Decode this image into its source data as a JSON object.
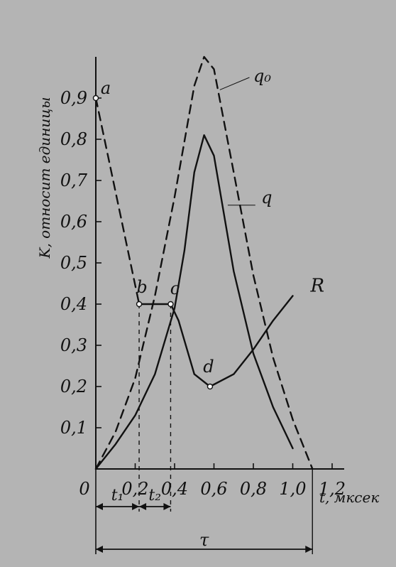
{
  "chart_data": {
    "type": "line",
    "ylabel": "K, относит единицы",
    "xlabel": "t, мксек",
    "xlim": [
      0,
      1.2
    ],
    "ylim": [
      0,
      1.0
    ],
    "x_ticks": [
      "0",
      "0,2",
      "0,4",
      "0,6",
      "0,8",
      "1,0",
      "1,2"
    ],
    "y_ticks": [
      "0,1",
      "0,2",
      "0,3",
      "0,4",
      "0,5",
      "0,6",
      "0,7",
      "0,8",
      "0,9"
    ],
    "series": [
      {
        "name": "q₀",
        "style": "dashed",
        "x": [
          0,
          0.1,
          0.2,
          0.3,
          0.4,
          0.5,
          0.55,
          0.6,
          0.7,
          0.8,
          0.9,
          1.0,
          1.1
        ],
        "y": [
          0,
          0.09,
          0.22,
          0.42,
          0.66,
          0.93,
          1.0,
          0.97,
          0.72,
          0.47,
          0.27,
          0.12,
          0.0
        ]
      },
      {
        "name": "q",
        "style": "solid",
        "x": [
          0,
          0.1,
          0.2,
          0.3,
          0.4,
          0.45,
          0.5,
          0.55,
          0.6,
          0.7,
          0.8,
          0.9,
          1.0
        ],
        "y": [
          0,
          0.06,
          0.13,
          0.23,
          0.39,
          0.53,
          0.72,
          0.81,
          0.76,
          0.48,
          0.28,
          0.15,
          0.05
        ]
      },
      {
        "name": "R",
        "segments": [
          {
            "style": "dashed",
            "x": [
              0,
              0.22
            ],
            "y": [
              0.9,
              0.4
            ]
          },
          {
            "style": "solid",
            "x": [
              0.22,
              0.38,
              0.42,
              0.5,
              0.58,
              0.7,
              0.8,
              0.9,
              1.0
            ],
            "y": [
              0.4,
              0.4,
              0.36,
              0.23,
              0.2,
              0.23,
              0.29,
              0.36,
              0.42
            ]
          }
        ]
      }
    ],
    "points": [
      {
        "label": "a",
        "x": 0,
        "y": 0.9
      },
      {
        "label": "b",
        "x": 0.22,
        "y": 0.4
      },
      {
        "label": "c",
        "x": 0.38,
        "y": 0.4
      },
      {
        "label": "d",
        "x": 0.58,
        "y": 0.2
      }
    ],
    "annotations": {
      "t1": "t₁",
      "t2": "t₂",
      "tau": "τ"
    },
    "t1_end": 0.22,
    "t2_end": 0.38,
    "tau_end": 1.1
  }
}
